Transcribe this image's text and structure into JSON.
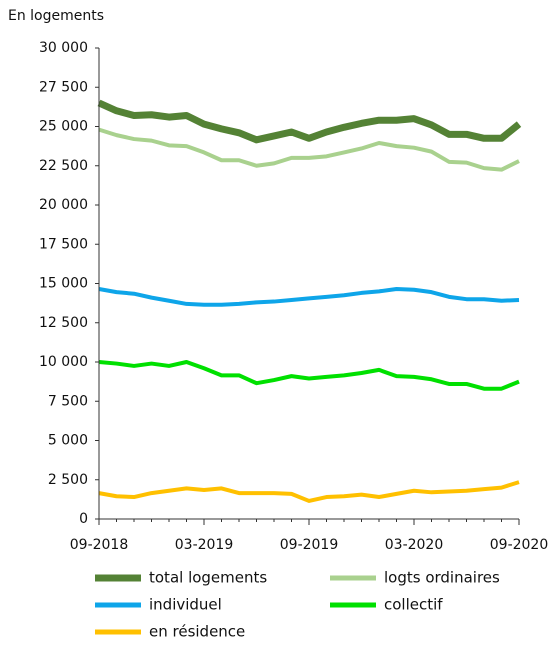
{
  "chart_data": {
    "type": "line",
    "y_label": "En logements",
    "categories": [
      "09-2018",
      null,
      null,
      null,
      null,
      null,
      "03-2019",
      null,
      null,
      null,
      null,
      null,
      "09-2019",
      null,
      null,
      null,
      null,
      null,
      "03-2020",
      null,
      null,
      null,
      null,
      null,
      "09-2020"
    ],
    "ylim": [
      0,
      30000
    ],
    "yticks": [
      0,
      {
        "value": 2500,
        "label": "2 500"
      },
      {
        "value": 5000,
        "label": "5 000"
      },
      {
        "value": 7500,
        "label": "7 500"
      },
      {
        "value": 10000,
        "label": "10 000"
      },
      {
        "value": 12500,
        "label": "12 500"
      },
      {
        "value": 15000,
        "label": "15 000"
      },
      {
        "value": 17500,
        "label": "17 500"
      },
      {
        "value": 20000,
        "label": "20 000"
      },
      {
        "value": 22500,
        "label": "22 500"
      },
      {
        "value": 25000,
        "label": "25 000"
      },
      {
        "value": 27500,
        "label": "27 500"
      },
      {
        "value": 30000,
        "label": "30 000"
      }
    ],
    "grid": true,
    "series": [
      {
        "name": "total logements",
        "color": "#548235",
        "values": [
          26500,
          26000,
          25700,
          25750,
          25600,
          25700,
          25150,
          24850,
          24600,
          24150,
          24400,
          24650,
          24250,
          24650,
          24950,
          25200,
          25400,
          25400,
          25500,
          25100,
          24500,
          24500,
          24250,
          24250,
          25150
        ]
      },
      {
        "name": "logts ordinaires",
        "color": "#a9d18e",
        "values": [
          24800,
          24450,
          24200,
          24100,
          23800,
          23750,
          23350,
          22850,
          22850,
          22500,
          22650,
          23000,
          23000,
          23100,
          23350,
          23600,
          23950,
          23750,
          23650,
          23400,
          22750,
          22700,
          22350,
          22250,
          22800
        ]
      },
      {
        "name": "individuel",
        "color": "#0ea5e9",
        "values": [
          14650,
          14450,
          14350,
          14100,
          13900,
          13700,
          13650,
          13650,
          13700,
          13800,
          13850,
          13950,
          14050,
          14150,
          14250,
          14400,
          14500,
          14650,
          14600,
          14450,
          14150,
          14000,
          14000,
          13900,
          13950
        ]
      },
      {
        "name": "collectif",
        "color": "#00e000",
        "values": [
          10000,
          9900,
          9750,
          9900,
          9750,
          10000,
          9600,
          9150,
          9150,
          8650,
          8850,
          9100,
          8950,
          9050,
          9150,
          9300,
          9500,
          9100,
          9050,
          8900,
          8600,
          8600,
          8300,
          8300,
          8750
        ]
      },
      {
        "name": "en résidence",
        "color": "#ffc000",
        "values": [
          1650,
          1450,
          1400,
          1650,
          1800,
          1950,
          1850,
          1950,
          1650,
          1650,
          1650,
          1600,
          1150,
          1400,
          1450,
          1550,
          1400,
          1600,
          1800,
          1700,
          1750,
          1800,
          1900,
          2000,
          2350
        ]
      }
    ]
  }
}
